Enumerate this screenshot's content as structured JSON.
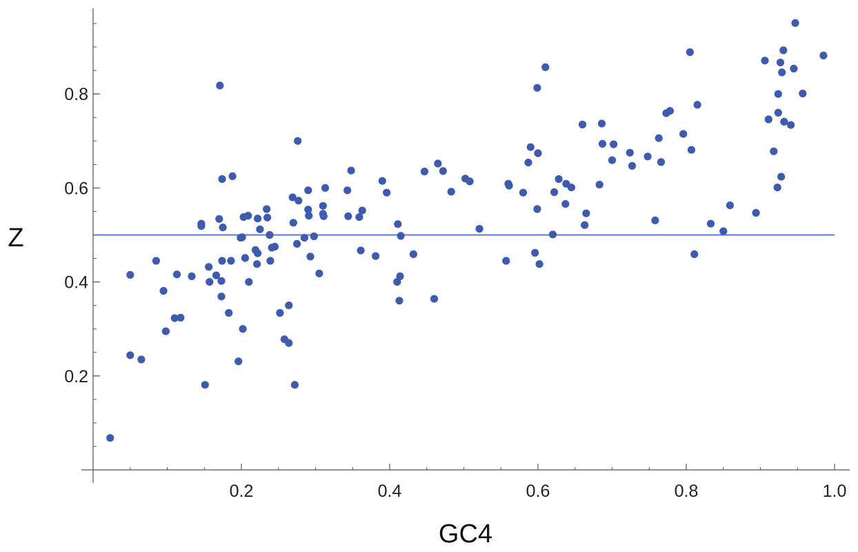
{
  "chart_data": {
    "type": "scatter",
    "title": "",
    "xlabel": "GC4",
    "ylabel": "Z",
    "xlim": [
      0.0,
      1.0
    ],
    "ylim": [
      0.0,
      0.97
    ],
    "xticks": [
      {
        "value": 0.2,
        "label": "0.2"
      },
      {
        "value": 0.4,
        "label": "0.4"
      },
      {
        "value": 0.6,
        "label": "0.6"
      },
      {
        "value": 0.8,
        "label": "0.8"
      },
      {
        "value": 1.0,
        "label": "1.0"
      }
    ],
    "yticks": [
      {
        "value": 0.2,
        "label": "0.2"
      },
      {
        "value": 0.4,
        "label": "0.4"
      },
      {
        "value": 0.6,
        "label": "0.6"
      },
      {
        "value": 0.8,
        "label": "0.8"
      }
    ],
    "x_minor_step": 0.05,
    "y_minor_step": 0.05,
    "reference_line": {
      "y": 0.5
    },
    "grid": false,
    "point_color": "#3f5bad",
    "line_color": "#5b79c4",
    "axis_color": "#555555",
    "points": [
      [
        0.023,
        0.068
      ],
      [
        0.05,
        0.415
      ],
      [
        0.05,
        0.244
      ],
      [
        0.065,
        0.235
      ],
      [
        0.085,
        0.445
      ],
      [
        0.095,
        0.381
      ],
      [
        0.098,
        0.295
      ],
      [
        0.11,
        0.323
      ],
      [
        0.113,
        0.416
      ],
      [
        0.118,
        0.324
      ],
      [
        0.133,
        0.412
      ],
      [
        0.146,
        0.524
      ],
      [
        0.146,
        0.519
      ],
      [
        0.151,
        0.181
      ],
      [
        0.156,
        0.432
      ],
      [
        0.157,
        0.4
      ],
      [
        0.166,
        0.414
      ],
      [
        0.17,
        0.534
      ],
      [
        0.171,
        0.818
      ],
      [
        0.173,
        0.402
      ],
      [
        0.173,
        0.369
      ],
      [
        0.174,
        0.619
      ],
      [
        0.174,
        0.445
      ],
      [
        0.175,
        0.516
      ],
      [
        0.183,
        0.334
      ],
      [
        0.186,
        0.445
      ],
      [
        0.188,
        0.625
      ],
      [
        0.196,
        0.231
      ],
      [
        0.199,
        0.494
      ],
      [
        0.201,
        0.495
      ],
      [
        0.203,
        0.538
      ],
      [
        0.202,
        0.3
      ],
      [
        0.205,
        0.451
      ],
      [
        0.209,
        0.541
      ],
      [
        0.21,
        0.4
      ],
      [
        0.219,
        0.468
      ],
      [
        0.221,
        0.438
      ],
      [
        0.222,
        0.535
      ],
      [
        0.222,
        0.461
      ],
      [
        0.225,
        0.512
      ],
      [
        0.234,
        0.555
      ],
      [
        0.235,
        0.537
      ],
      [
        0.238,
        0.5
      ],
      [
        0.239,
        0.445
      ],
      [
        0.241,
        0.473
      ],
      [
        0.245,
        0.475
      ],
      [
        0.252,
        0.334
      ],
      [
        0.258,
        0.278
      ],
      [
        0.264,
        0.35
      ],
      [
        0.264,
        0.27
      ],
      [
        0.269,
        0.58
      ],
      [
        0.27,
        0.526
      ],
      [
        0.272,
        0.181
      ],
      [
        0.275,
        0.481
      ],
      [
        0.276,
        0.7
      ],
      [
        0.277,
        0.573
      ],
      [
        0.285,
        0.494
      ],
      [
        0.29,
        0.595
      ],
      [
        0.29,
        0.554
      ],
      [
        0.291,
        0.541
      ],
      [
        0.293,
        0.454
      ],
      [
        0.298,
        0.497
      ],
      [
        0.305,
        0.418
      ],
      [
        0.31,
        0.562
      ],
      [
        0.31,
        0.545
      ],
      [
        0.311,
        0.54
      ],
      [
        0.313,
        0.6
      ],
      [
        0.343,
        0.595
      ],
      [
        0.344,
        0.54
      ],
      [
        0.348,
        0.637
      ],
      [
        0.359,
        0.538
      ],
      [
        0.361,
        0.467
      ],
      [
        0.363,
        0.552
      ],
      [
        0.381,
        0.455
      ],
      [
        0.39,
        0.615
      ],
      [
        0.396,
        0.59
      ],
      [
        0.41,
        0.4
      ],
      [
        0.411,
        0.523
      ],
      [
        0.413,
        0.36
      ],
      [
        0.414,
        0.412
      ],
      [
        0.415,
        0.498
      ],
      [
        0.432,
        0.459
      ],
      [
        0.447,
        0.635
      ],
      [
        0.46,
        0.364
      ],
      [
        0.465,
        0.652
      ],
      [
        0.472,
        0.636
      ],
      [
        0.483,
        0.592
      ],
      [
        0.502,
        0.62
      ],
      [
        0.508,
        0.614
      ],
      [
        0.521,
        0.513
      ],
      [
        0.557,
        0.445
      ],
      [
        0.56,
        0.609
      ],
      [
        0.561,
        0.605
      ],
      [
        0.58,
        0.59
      ],
      [
        0.587,
        0.654
      ],
      [
        0.59,
        0.687
      ],
      [
        0.596,
        0.462
      ],
      [
        0.599,
        0.813
      ],
      [
        0.599,
        0.555
      ],
      [
        0.6,
        0.674
      ],
      [
        0.602,
        0.438
      ],
      [
        0.61,
        0.857
      ],
      [
        0.62,
        0.501
      ],
      [
        0.622,
        0.591
      ],
      [
        0.628,
        0.619
      ],
      [
        0.637,
        0.566
      ],
      [
        0.638,
        0.609
      ],
      [
        0.645,
        0.601
      ],
      [
        0.66,
        0.735
      ],
      [
        0.663,
        0.521
      ],
      [
        0.665,
        0.546
      ],
      [
        0.683,
        0.607
      ],
      [
        0.686,
        0.737
      ],
      [
        0.687,
        0.694
      ],
      [
        0.7,
        0.659
      ],
      [
        0.702,
        0.693
      ],
      [
        0.724,
        0.675
      ],
      [
        0.727,
        0.647
      ],
      [
        0.748,
        0.667
      ],
      [
        0.758,
        0.531
      ],
      [
        0.763,
        0.706
      ],
      [
        0.766,
        0.655
      ],
      [
        0.773,
        0.759
      ],
      [
        0.778,
        0.764
      ],
      [
        0.796,
        0.715
      ],
      [
        0.805,
        0.889
      ],
      [
        0.807,
        0.681
      ],
      [
        0.811,
        0.459
      ],
      [
        0.815,
        0.777
      ],
      [
        0.833,
        0.524
      ],
      [
        0.85,
        0.508
      ],
      [
        0.859,
        0.563
      ],
      [
        0.894,
        0.547
      ],
      [
        0.906,
        0.871
      ],
      [
        0.911,
        0.746
      ],
      [
        0.918,
        0.678
      ],
      [
        0.923,
        0.601
      ],
      [
        0.924,
        0.8
      ],
      [
        0.924,
        0.76
      ],
      [
        0.927,
        0.867
      ],
      [
        0.928,
        0.624
      ],
      [
        0.929,
        0.846
      ],
      [
        0.931,
        0.893
      ],
      [
        0.932,
        0.741
      ],
      [
        0.941,
        0.734
      ],
      [
        0.945,
        0.854
      ],
      [
        0.947,
        0.951
      ],
      [
        0.957,
        0.801
      ],
      [
        0.985,
        0.882
      ]
    ]
  }
}
